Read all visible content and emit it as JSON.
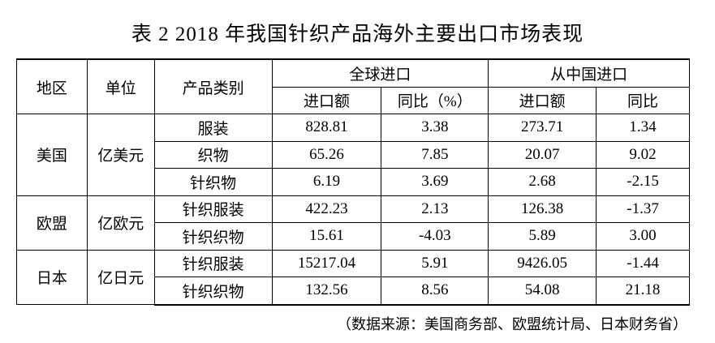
{
  "title": "表 2 2018 年我国针织产品海外主要出口市场表现",
  "header": {
    "region": "地区",
    "unit": "单位",
    "category": "产品类别",
    "global": {
      "title": "全球进口",
      "amount": "进口额",
      "yoy": "同比（%）"
    },
    "china": {
      "title": "从中国进口",
      "amount": "进口额",
      "yoy": "同比"
    }
  },
  "groups": [
    {
      "region": "美国",
      "unit": "亿美元",
      "rows": [
        {
          "category": "服装",
          "values": [
            "828.81",
            "3.38",
            "273.71",
            "1.34"
          ]
        },
        {
          "category": "织物",
          "values": [
            "65.26",
            "7.85",
            "20.07",
            "9.02"
          ]
        },
        {
          "category": "针织物",
          "values": [
            "6.19",
            "3.69",
            "2.68",
            "-2.15"
          ]
        }
      ]
    },
    {
      "region": "欧盟",
      "unit": "亿欧元",
      "rows": [
        {
          "category": "针织服装",
          "values": [
            "422.23",
            "2.13",
            "126.38",
            "-1.37"
          ]
        },
        {
          "category": "针织织物",
          "values": [
            "15.61",
            "-4.03",
            "5.89",
            "3.00"
          ]
        }
      ]
    },
    {
      "region": "日本",
      "unit": "亿日元",
      "rows": [
        {
          "category": "针织服装",
          "values": [
            "15217.04",
            "5.91",
            "9426.05",
            "-1.44"
          ]
        },
        {
          "category": "针织织物",
          "values": [
            "132.56",
            "8.56",
            "54.08",
            "21.18"
          ]
        }
      ]
    }
  ],
  "source": "（数据来源：美国商务部、欧盟统计局、日本财务省）"
}
